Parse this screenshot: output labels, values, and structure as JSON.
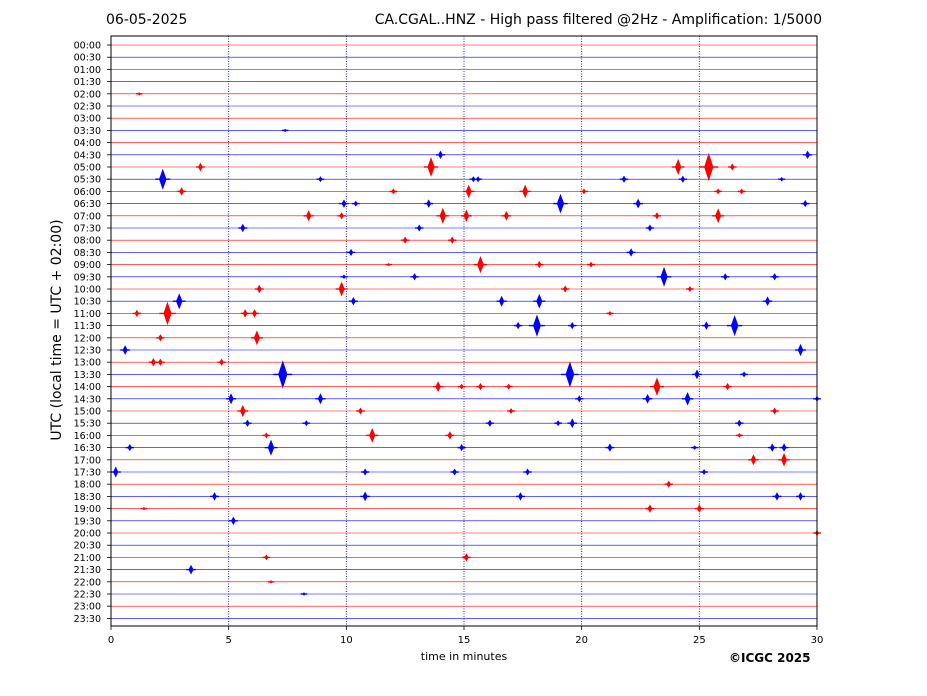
{
  "header": {
    "date": "06-05-2025",
    "title": "CA.CGAL..HNZ - High pass filtered @2Hz - Amplification: 1/5000"
  },
  "footer": {
    "copyright": "©ICGC 2025"
  },
  "colors": {
    "red_trace": "#ff0000",
    "blue_trace": "#0000ff",
    "grid": "#000080",
    "axis": "#000000"
  },
  "chart_data": {
    "type": "line",
    "title": "CA.CGAL..HNZ - High pass filtered @2Hz - Amplification: 1/5000",
    "xlabel": "time in minutes",
    "ylabel": "UTC (local time = UTC + 02:00)",
    "xlim": [
      0,
      30
    ],
    "x_ticks": [
      0,
      5,
      10,
      15,
      20,
      25,
      30
    ],
    "vertical_grid_at": [
      5,
      10,
      15,
      20,
      25
    ],
    "row_colors_cycle": [
      "red",
      "blue"
    ],
    "rows": [
      {
        "label": "00:00",
        "color": "red",
        "events": []
      },
      {
        "label": "00:30",
        "color": "blue",
        "events": []
      },
      {
        "label": "01:00",
        "color": "red",
        "events": []
      },
      {
        "label": "01:30",
        "color": "blue",
        "events": []
      },
      {
        "label": "02:00",
        "color": "red",
        "events": [
          [
            1.2,
            0.2
          ]
        ]
      },
      {
        "label": "02:30",
        "color": "blue",
        "events": []
      },
      {
        "label": "03:00",
        "color": "red",
        "events": []
      },
      {
        "label": "03:30",
        "color": "blue",
        "events": [
          [
            7.4,
            0.2
          ]
        ]
      },
      {
        "label": "04:00",
        "color": "red",
        "events": []
      },
      {
        "label": "04:30",
        "color": "blue",
        "events": [
          [
            14,
            0.6
          ],
          [
            29.6,
            0.6
          ]
        ]
      },
      {
        "label": "05:00",
        "color": "red",
        "events": [
          [
            3.8,
            0.6
          ],
          [
            13.6,
            1.5
          ],
          [
            24.1,
            1.2
          ],
          [
            25.4,
            2.2
          ],
          [
            26.4,
            0.5
          ]
        ]
      },
      {
        "label": "05:30",
        "color": "blue",
        "events": [
          [
            2.2,
            1.6
          ],
          [
            8.9,
            0.4
          ],
          [
            15.4,
            0.4
          ],
          [
            15.6,
            0.4
          ],
          [
            21.8,
            0.5
          ],
          [
            24.3,
            0.5
          ],
          [
            28.5,
            0.3
          ]
        ]
      },
      {
        "label": "06:00",
        "color": "red",
        "events": [
          [
            3,
            0.6
          ],
          [
            12,
            0.4
          ],
          [
            15.2,
            1
          ],
          [
            17.6,
            1
          ],
          [
            20.1,
            0.4
          ],
          [
            25.8,
            0.4
          ],
          [
            26.8,
            0.4
          ]
        ]
      },
      {
        "label": "06:30",
        "color": "blue",
        "events": [
          [
            9.9,
            0.6
          ],
          [
            10.4,
            0.4
          ],
          [
            13.5,
            0.6
          ],
          [
            19.1,
            1.5
          ],
          [
            22.4,
            0.7
          ],
          [
            29.5,
            0.5
          ]
        ]
      },
      {
        "label": "07:00",
        "color": "red",
        "events": [
          [
            8.4,
            0.8
          ],
          [
            9.8,
            0.5
          ],
          [
            14.1,
            1.2
          ],
          [
            15.1,
            0.9
          ],
          [
            16.8,
            0.7
          ],
          [
            23.2,
            0.5
          ],
          [
            25.8,
            1.1
          ]
        ]
      },
      {
        "label": "07:30",
        "color": "blue",
        "events": [
          [
            5.6,
            0.6
          ],
          [
            13.1,
            0.5
          ],
          [
            22.9,
            0.5
          ]
        ]
      },
      {
        "label": "08:00",
        "color": "red",
        "events": [
          [
            12.5,
            0.5
          ],
          [
            14.5,
            0.5
          ]
        ]
      },
      {
        "label": "08:30",
        "color": "blue",
        "events": [
          [
            10.2,
            0.5
          ],
          [
            22.1,
            0.6
          ]
        ]
      },
      {
        "label": "09:00",
        "color": "red",
        "events": [
          [
            11.8,
            0.2
          ],
          [
            15.7,
            1.3
          ],
          [
            18.2,
            0.5
          ],
          [
            20.4,
            0.4
          ]
        ]
      },
      {
        "label": "09:30",
        "color": "blue",
        "events": [
          [
            9.9,
            0.3
          ],
          [
            12.9,
            0.5
          ],
          [
            23.5,
            1.5
          ],
          [
            26.1,
            0.5
          ],
          [
            28.2,
            0.5
          ]
        ]
      },
      {
        "label": "10:00",
        "color": "red",
        "events": [
          [
            6.3,
            0.6
          ],
          [
            9.8,
            1.1
          ],
          [
            19.3,
            0.5
          ],
          [
            24.6,
            0.4
          ]
        ]
      },
      {
        "label": "10:30",
        "color": "blue",
        "events": [
          [
            2.9,
            1.2
          ],
          [
            10.3,
            0.6
          ],
          [
            16.6,
            0.8
          ],
          [
            18.2,
            1.1
          ],
          [
            27.9,
            0.7
          ]
        ]
      },
      {
        "label": "11:00",
        "color": "red",
        "events": [
          [
            1.1,
            0.5
          ],
          [
            2.4,
            1.8
          ],
          [
            5.7,
            0.6
          ],
          [
            6.1,
            0.6
          ],
          [
            21.2,
            0.3
          ]
        ]
      },
      {
        "label": "11:30",
        "color": "blue",
        "events": [
          [
            17.3,
            0.5
          ],
          [
            18.1,
            1.7
          ],
          [
            19.6,
            0.5
          ],
          [
            25.3,
            0.6
          ],
          [
            26.5,
            1.6
          ]
        ]
      },
      {
        "label": "12:00",
        "color": "red",
        "events": [
          [
            2.1,
            0.5
          ],
          [
            6.2,
            1.1
          ]
        ]
      },
      {
        "label": "12:30",
        "color": "blue",
        "events": [
          [
            0.6,
            0.7
          ],
          [
            29.3,
            0.9
          ]
        ]
      },
      {
        "label": "13:00",
        "color": "red",
        "events": [
          [
            1.8,
            0.6
          ],
          [
            2.1,
            0.5
          ],
          [
            4.7,
            0.5
          ]
        ]
      },
      {
        "label": "13:30",
        "color": "blue",
        "events": [
          [
            7.3,
            2.2
          ],
          [
            19.5,
            2
          ],
          [
            24.9,
            0.7
          ],
          [
            26.9,
            0.4
          ]
        ]
      },
      {
        "label": "14:00",
        "color": "red",
        "events": [
          [
            13.9,
            0.8
          ],
          [
            14.9,
            0.4
          ],
          [
            15.7,
            0.5
          ],
          [
            16.9,
            0.4
          ],
          [
            23.2,
            1.4
          ],
          [
            26.2,
            0.5
          ]
        ]
      },
      {
        "label": "14:30",
        "color": "blue",
        "events": [
          [
            5.1,
            0.8
          ],
          [
            8.9,
            0.8
          ],
          [
            19.9,
            0.5
          ],
          [
            22.8,
            0.7
          ],
          [
            24.5,
            1
          ],
          [
            30,
            0.4
          ]
        ]
      },
      {
        "label": "15:00",
        "color": "red",
        "events": [
          [
            5.6,
            0.9
          ],
          [
            10.6,
            0.5
          ],
          [
            17,
            0.4
          ],
          [
            28.2,
            0.5
          ]
        ]
      },
      {
        "label": "15:30",
        "color": "blue",
        "events": [
          [
            5.8,
            0.5
          ],
          [
            8.3,
            0.4
          ],
          [
            16.1,
            0.5
          ],
          [
            19,
            0.4
          ],
          [
            19.6,
            0.7
          ],
          [
            26.7,
            0.5
          ]
        ]
      },
      {
        "label": "16:00",
        "color": "red",
        "events": [
          [
            6.6,
            0.4
          ],
          [
            11.1,
            1.1
          ],
          [
            14.4,
            0.6
          ],
          [
            26.7,
            0.3
          ]
        ]
      },
      {
        "label": "16:30",
        "color": "blue",
        "events": [
          [
            0.8,
            0.5
          ],
          [
            6.8,
            1.2
          ],
          [
            14.9,
            0.5
          ],
          [
            21.2,
            0.6
          ],
          [
            24.8,
            0.3
          ],
          [
            28.1,
            0.6
          ],
          [
            28.6,
            0.6
          ]
        ]
      },
      {
        "label": "17:00",
        "color": "red",
        "events": [
          [
            27.3,
            0.8
          ],
          [
            28.6,
            1
          ]
        ]
      },
      {
        "label": "17:30",
        "color": "blue",
        "events": [
          [
            0.2,
            0.8
          ],
          [
            10.8,
            0.5
          ],
          [
            14.6,
            0.5
          ],
          [
            17.7,
            0.5
          ],
          [
            25.2,
            0.4
          ]
        ]
      },
      {
        "label": "18:00",
        "color": "red",
        "events": [
          [
            23.7,
            0.5
          ]
        ]
      },
      {
        "label": "18:30",
        "color": "blue",
        "events": [
          [
            4.4,
            0.6
          ],
          [
            10.8,
            0.7
          ],
          [
            17.4,
            0.6
          ],
          [
            28.3,
            0.6
          ],
          [
            29.3,
            0.6
          ]
        ]
      },
      {
        "label": "19:00",
        "color": "red",
        "events": [
          [
            1.4,
            0.2
          ],
          [
            22.9,
            0.6
          ],
          [
            25,
            0.6
          ]
        ]
      },
      {
        "label": "19:30",
        "color": "blue",
        "events": [
          [
            5.2,
            0.6
          ]
        ]
      },
      {
        "label": "20:00",
        "color": "red",
        "events": [
          [
            30,
            0.4
          ]
        ]
      },
      {
        "label": "20:30",
        "color": "blue",
        "events": []
      },
      {
        "label": "21:00",
        "color": "red",
        "events": [
          [
            6.6,
            0.4
          ],
          [
            15.1,
            0.6
          ]
        ]
      },
      {
        "label": "21:30",
        "color": "blue",
        "events": [
          [
            3.4,
            0.7
          ]
        ]
      },
      {
        "label": "22:00",
        "color": "red",
        "events": [
          [
            6.8,
            0.2
          ]
        ]
      },
      {
        "label": "22:30",
        "color": "blue",
        "events": [
          [
            8.2,
            0.2
          ]
        ]
      },
      {
        "label": "23:00",
        "color": "red",
        "events": []
      },
      {
        "label": "23:30",
        "color": "blue",
        "events": []
      }
    ]
  }
}
